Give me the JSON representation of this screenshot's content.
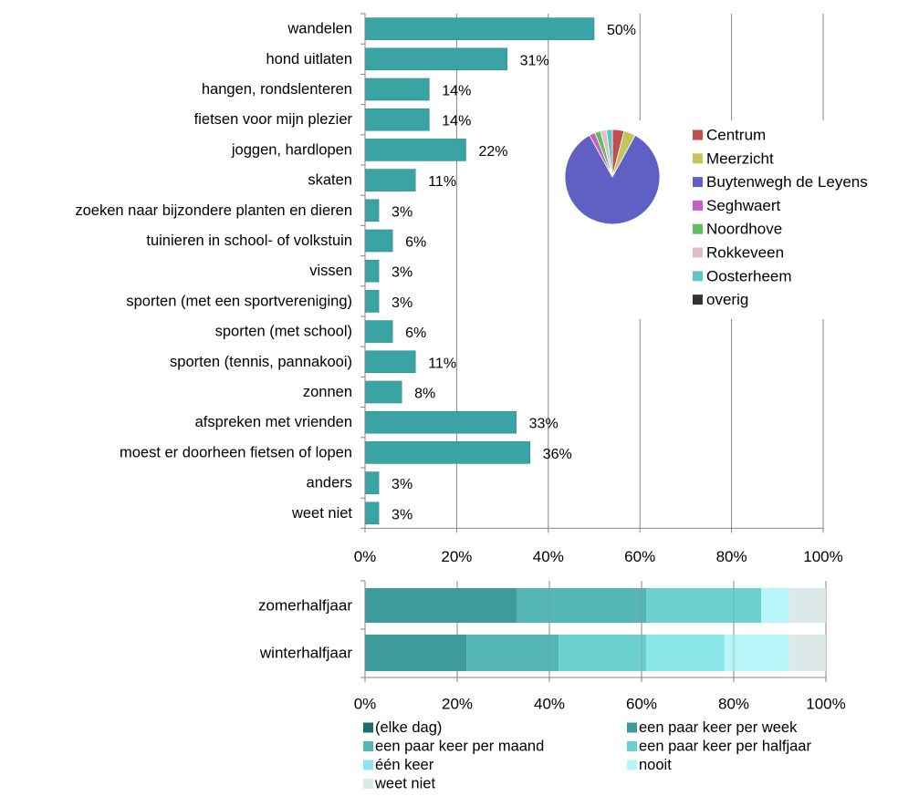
{
  "colors": {
    "bar_teal": "#3AA3A3",
    "bar_stroke": "#2C8A8A",
    "grid": "#868686",
    "axis": "#868686"
  },
  "chart_data": [
    {
      "type": "bar",
      "orientation": "horizontal",
      "categories": [
        "wandelen",
        "hond uitlaten",
        "hangen, rondslenteren",
        "fietsen voor mijn plezier",
        "joggen, hardlopen",
        "skaten",
        "zoeken naar bijzondere planten en dieren",
        "tuinieren in school- of volkstuin",
        "vissen",
        "sporten (met een sportvereniging)",
        "sporten (met school)",
        "sporten (tennis, pannakooi)",
        "zonnen",
        "afspreken met vrienden",
        "moest er doorheen fietsen of lopen",
        "anders",
        "weet niet"
      ],
      "values": [
        50,
        31,
        14,
        14,
        22,
        11,
        3,
        6,
        3,
        3,
        6,
        11,
        8,
        33,
        36,
        3,
        3
      ],
      "data_labels": [
        "50%",
        "31%",
        "14%",
        "14%",
        "22%",
        "11%",
        "3%",
        "6%",
        "3%",
        "3%",
        "6%",
        "11%",
        "8%",
        "33%",
        "36%",
        "3%",
        "3%"
      ],
      "xlim": [
        0,
        100
      ],
      "x_ticks": [
        "0%",
        "20%",
        "40%",
        "60%",
        "80%",
        "100%"
      ],
      "grid": true,
      "color": "#3AA3A3"
    },
    {
      "type": "pie",
      "legend_position": "right",
      "slices": [
        {
          "label": "Centrum",
          "value": 4,
          "color": "#C0504D"
        },
        {
          "label": "Meerzicht",
          "value": 4,
          "color": "#C3C45A"
        },
        {
          "label": "Buytenwegh de Leyens",
          "value": 84,
          "color": "#5F5FC4"
        },
        {
          "label": "Seghwaert",
          "value": 2,
          "color": "#C45FC4"
        },
        {
          "label": "Noordhove",
          "value": 2,
          "color": "#5FBF5F"
        },
        {
          "label": "Rokkeveen",
          "value": 2,
          "color": "#E0BFC4"
        },
        {
          "label": "Oosterheem",
          "value": 2,
          "color": "#62C4C4"
        },
        {
          "label": "overig",
          "value": 0,
          "color": "#333333"
        }
      ]
    },
    {
      "type": "bar",
      "orientation": "horizontal",
      "stacked": true,
      "categories": [
        "zomerhalfjaar",
        "winterhalfjaar"
      ],
      "series": [
        {
          "name": "(elke dag)",
          "color": "#1F6B6B",
          "values": [
            0,
            0
          ]
        },
        {
          "name": "een paar keer per week",
          "color": "#3C9C9C",
          "values": [
            33,
            22
          ]
        },
        {
          "name": "een paar keer per maand",
          "color": "#55B6B6",
          "values": [
            28,
            20
          ]
        },
        {
          "name": "een paar keer per halfjaar",
          "color": "#6CD0D0",
          "values": [
            25,
            19
          ]
        },
        {
          "name": "één keer",
          "color": "#8BE6EA",
          "values": [
            0,
            17
          ]
        },
        {
          "name": "nooit",
          "color": "#B7F6F8",
          "values": [
            6,
            14
          ]
        },
        {
          "name": "weet niet",
          "color": "#DDE9E8",
          "values": [
            8,
            8
          ]
        }
      ],
      "xlim": [
        0,
        100
      ],
      "x_ticks": [
        "0%",
        "20%",
        "40%",
        "60%",
        "80%",
        "100%"
      ],
      "grid": true,
      "legend_position": "bottom"
    }
  ]
}
